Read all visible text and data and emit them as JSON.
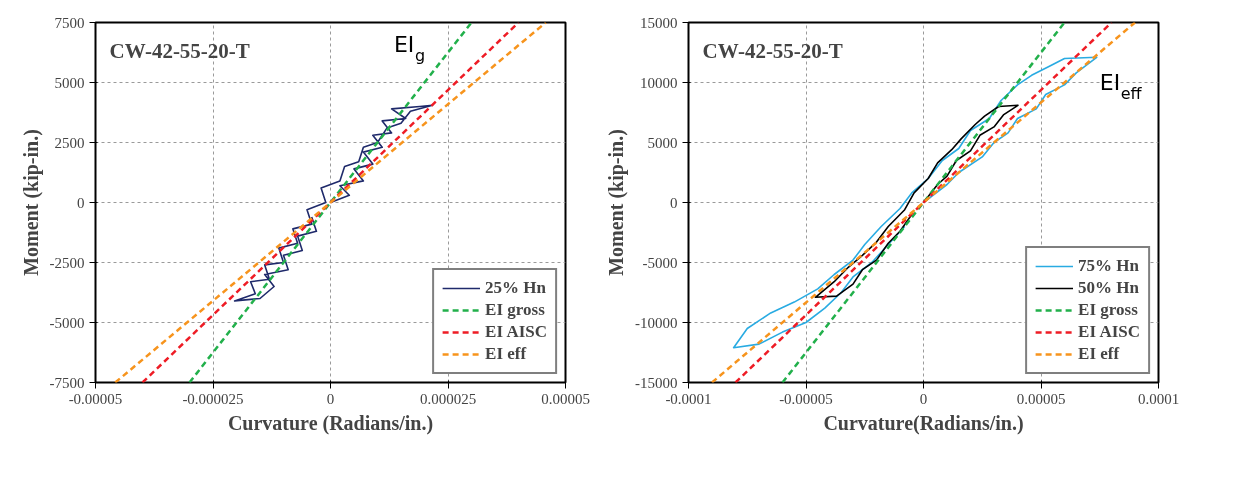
{
  "chart_data": [
    {
      "type": "line",
      "title": "CW-42-55-20-T",
      "xlabel": "Curvature (Radians/in.)",
      "ylabel": "Moment (kip-in.)",
      "xlim": [
        -5e-05,
        5e-05
      ],
      "ylim": [
        -7500,
        7500
      ],
      "xticks": [
        {
          "value": -5e-05,
          "label": "-0.00005"
        },
        {
          "value": -2.5e-05,
          "label": "-0.000025"
        },
        0,
        {
          "value": 2.5e-05,
          "label": "0.000025"
        },
        {
          "value": 5e-05,
          "label": "0.00005"
        }
      ],
      "yticks": [
        -7500,
        -5000,
        -2500,
        0,
        2500,
        5000,
        7500
      ],
      "grid": true,
      "legend": "bottom right",
      "annotations": [
        "EI$_{g}$"
      ],
      "series": [
        {
          "name": "25% Hn",
          "color": "#1f2a6b",
          "line_style": "solid",
          "x": [
            0,
            4e-06,
            2e-06,
            7e-06,
            5e-06,
            9e-06,
            7e-06,
            1.1e-05,
            9e-06,
            1.3e-05,
            1.1e-05,
            1.6e-05,
            1.3e-05,
            1.9e-05,
            2.17e-05,
            1.7e-05,
            1.5e-05,
            1.2e-05,
            1e-05,
            7e-06,
            6e-06,
            3e-06,
            2e-06,
            -2e-06,
            -1e-06,
            -5e-06,
            -4e-06,
            -8e-06,
            -7e-06,
            -1.1e-05,
            -1e-05,
            -1.4e-05,
            -1.3e-05,
            -1.7e-05,
            -1.6e-05,
            -2.04e-05,
            -1.5e-05,
            -1.2e-05,
            -1.4e-05,
            -9e-06,
            -1e-05,
            -6e-06,
            -7e-06,
            -3e-06,
            -4e-06
          ],
          "values": [
            0,
            300,
            700,
            900,
            1400,
            1600,
            2100,
            2300,
            2800,
            2900,
            3400,
            3500,
            3900,
            4000,
            4050,
            3800,
            3300,
            3100,
            2500,
            2300,
            1700,
            1500,
            900,
            600,
            0,
            -300,
            -900,
            -1100,
            -1700,
            -1900,
            -2500,
            -2600,
            -3200,
            -3300,
            -3800,
            -4100,
            -4000,
            -3500,
            -3000,
            -2800,
            -2200,
            -2000,
            -1400,
            -1200,
            -600
          ]
        },
        {
          "name": "EI gross",
          "color": "#22b04b",
          "line_style": "dashed",
          "x": [
            -3e-05,
            3e-05
          ],
          "values": [
            -7500,
            7500
          ]
        },
        {
          "name": "EI AISC",
          "color": "#ee1c25",
          "line_style": "dashed",
          "x": [
            -4e-05,
            4e-05
          ],
          "values": [
            -7500,
            7500
          ]
        },
        {
          "name": "EI eff",
          "color": "#f7941d",
          "line_style": "dashed",
          "x": [
            -4.58e-05,
            4.58e-05
          ],
          "values": [
            -7500,
            7500
          ]
        }
      ]
    },
    {
      "type": "line",
      "title": "CW-42-55-20-T",
      "xlabel": "Curvature(Radians/in.)",
      "ylabel": "Moment (kip-in.)",
      "xlim": [
        -0.0001,
        0.0001
      ],
      "ylim": [
        -15000,
        15000
      ],
      "xticks": [
        {
          "value": -0.0001,
          "label": "-0.0001"
        },
        {
          "value": -5e-05,
          "label": "-0.00005"
        },
        0,
        {
          "value": 5e-05,
          "label": "0.00005"
        },
        {
          "value": 0.0001,
          "label": "0.0001"
        }
      ],
      "yticks": [
        -15000,
        -10000,
        -5000,
        0,
        5000,
        10000,
        15000
      ],
      "grid": true,
      "legend": "bottom right",
      "annotations": [
        "EI$_{eff}$"
      ],
      "series": [
        {
          "name": "75% Hn",
          "color": "#29abe2",
          "line_style": "solid",
          "x": [
            0,
            1e-05,
            1.5e-05,
            2.5e-05,
            3e-05,
            3.6e-05,
            4e-05,
            4.8e-05,
            5.2e-05,
            6e-05,
            6.5e-05,
            7.37e-05,
            6e-05,
            5.4e-05,
            4.6e-05,
            4e-05,
            3.3e-05,
            2.8e-05,
            2e-05,
            1.5e-05,
            8e-06,
            2e-06,
            -5e-06,
            -1e-05,
            -1.8e-05,
            -2.5e-05,
            -3e-05,
            -3.8e-05,
            -4.5e-05,
            -5.5e-05,
            -6.5e-05,
            -7.5e-05,
            -8.08e-05,
            -7e-05,
            -6e-05,
            -5e-05,
            -4.2e-05,
            -3.5e-05,
            -3e-05,
            -2.2e-05,
            -1.5e-05,
            -8e-06
          ],
          "values": [
            0,
            1500,
            2500,
            3800,
            5000,
            5800,
            7000,
            7800,
            9000,
            9800,
            10800,
            12100,
            12000,
            11400,
            10600,
            9800,
            8500,
            7000,
            6000,
            4500,
            3500,
            2000,
            800,
            -500,
            -2000,
            -3500,
            -4800,
            -6000,
            -7200,
            -8300,
            -9200,
            -10500,
            -12100,
            -11800,
            -10800,
            -10000,
            -8800,
            -7500,
            -6200,
            -5000,
            -3500,
            -2000
          ]
        },
        {
          "name": "50% Hn",
          "color": "#000000",
          "line_style": "solid",
          "x": [
            0,
            6e-06,
            1e-05,
            1.4e-05,
            2e-05,
            2.4e-05,
            3e-05,
            3.4e-05,
            4.02e-05,
            3.2e-05,
            2.6e-05,
            2.2e-05,
            1.6e-05,
            1.2e-05,
            6e-06,
            2e-06,
            -4e-06,
            -8e-06,
            -1.5e-05,
            -2e-05,
            -2.6e-05,
            -3.2e-05,
            -3.8e-05,
            -4.6e-05,
            -3.7e-05,
            -3e-05,
            -2.6e-05,
            -2e-05,
            -1.5e-05,
            -1e-05,
            -5e-06
          ],
          "values": [
            0,
            1500,
            2200,
            3500,
            4300,
            5600,
            6300,
            7300,
            8100,
            8000,
            7200,
            6500,
            5300,
            4400,
            3300,
            2000,
            800,
            -600,
            -2000,
            -3300,
            -4400,
            -5400,
            -6600,
            -7900,
            -7800,
            -6800,
            -5600,
            -4800,
            -3400,
            -2400,
            -1000
          ]
        },
        {
          "name": "EI gross",
          "color": "#22b04b",
          "line_style": "dashed",
          "x": [
            -6e-05,
            6e-05
          ],
          "values": [
            -15000,
            15000
          ]
        },
        {
          "name": "EI AISC",
          "color": "#ee1c25",
          "line_style": "dashed",
          "x": [
            -8e-05,
            8e-05
          ],
          "values": [
            -15000,
            15000
          ]
        },
        {
          "name": "EI eff",
          "color": "#f7941d",
          "line_style": "dashed",
          "x": [
            -9e-05,
            9e-05
          ],
          "values": [
            -15000,
            15000
          ]
        }
      ]
    }
  ]
}
